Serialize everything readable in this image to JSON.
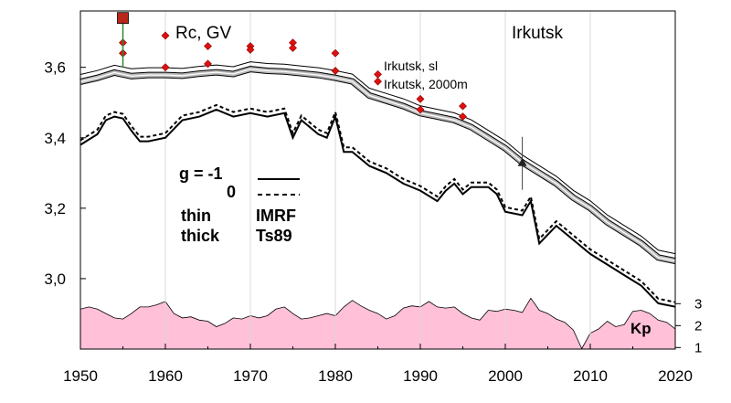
{
  "chart_data": {
    "type": "line",
    "title": "Rc, GV",
    "station_label": "Irkutsk",
    "xlim": [
      1950,
      2020
    ],
    "ylim": [
      2.8,
      3.76
    ],
    "x_ticks": [
      1950,
      1960,
      1970,
      1980,
      1990,
      2000,
      2010,
      2020
    ],
    "y_ticks": [
      {
        "value": 3.0,
        "label": "3,0"
      },
      {
        "value": 3.2,
        "label": "3,2"
      },
      {
        "value": 3.4,
        "label": "3,4"
      },
      {
        "value": 3.6,
        "label": "3,6"
      }
    ],
    "legend": {
      "row1_left": "g  = -1",
      "row2_left": "0",
      "row3_left": "thin",
      "row3_right": "IMRF",
      "row4_left": "thick",
      "row4_right": "Ts89"
    },
    "series": [
      {
        "name": "Irkutsk, 2000m",
        "values": [
          [
            1950,
            3.559
          ],
          [
            1952,
            3.57
          ],
          [
            1954,
            3.585
          ],
          [
            1956,
            3.575
          ],
          [
            1958,
            3.578
          ],
          [
            1960,
            3.578
          ],
          [
            1962,
            3.576
          ],
          [
            1964,
            3.582
          ],
          [
            1966,
            3.586
          ],
          [
            1968,
            3.581
          ],
          [
            1970,
            3.595
          ],
          [
            1972,
            3.59
          ],
          [
            1974,
            3.588
          ],
          [
            1976,
            3.583
          ],
          [
            1978,
            3.578
          ],
          [
            1980,
            3.57
          ],
          [
            1982,
            3.56
          ],
          [
            1984,
            3.52
          ],
          [
            1986,
            3.505
          ],
          [
            1988,
            3.49
          ],
          [
            1990,
            3.47
          ],
          [
            1992,
            3.46
          ],
          [
            1994,
            3.45
          ],
          [
            1996,
            3.43
          ],
          [
            1998,
            3.4
          ],
          [
            2000,
            3.37
          ],
          [
            2002,
            3.33
          ],
          [
            2004,
            3.3
          ],
          [
            2006,
            3.27
          ],
          [
            2008,
            3.23
          ],
          [
            2010,
            3.2
          ],
          [
            2012,
            3.16
          ],
          [
            2014,
            3.13
          ],
          [
            2016,
            3.1
          ],
          [
            2018,
            3.06
          ],
          [
            2020,
            3.05
          ]
        ]
      },
      {
        "name": "Irkutsk, sl",
        "values": [
          [
            1950,
            3.38
          ],
          [
            1952,
            3.41
          ],
          [
            1953,
            3.45
          ],
          [
            1954,
            3.46
          ],
          [
            1955,
            3.455
          ],
          [
            1956,
            3.42
          ],
          [
            1957,
            3.39
          ],
          [
            1958,
            3.39
          ],
          [
            1960,
            3.4
          ],
          [
            1962,
            3.45
          ],
          [
            1964,
            3.46
          ],
          [
            1966,
            3.48
          ],
          [
            1968,
            3.46
          ],
          [
            1970,
            3.47
          ],
          [
            1972,
            3.46
          ],
          [
            1974,
            3.47
          ],
          [
            1975,
            3.4
          ],
          [
            1976,
            3.45
          ],
          [
            1978,
            3.41
          ],
          [
            1979,
            3.4
          ],
          [
            1980,
            3.46
          ],
          [
            1981,
            3.36
          ],
          [
            1982,
            3.36
          ],
          [
            1984,
            3.32
          ],
          [
            1986,
            3.3
          ],
          [
            1988,
            3.27
          ],
          [
            1990,
            3.25
          ],
          [
            1992,
            3.22
          ],
          [
            1993,
            3.25
          ],
          [
            1994,
            3.27
          ],
          [
            1995,
            3.24
          ],
          [
            1996,
            3.26
          ],
          [
            1998,
            3.26
          ],
          [
            1999,
            3.24
          ],
          [
            2000,
            3.19
          ],
          [
            2002,
            3.18
          ],
          [
            2003,
            3.22
          ],
          [
            2004,
            3.1
          ],
          [
            2006,
            3.15
          ],
          [
            2008,
            3.11
          ],
          [
            2010,
            3.07
          ],
          [
            2012,
            3.04
          ],
          [
            2014,
            3.01
          ],
          [
            2016,
            2.98
          ],
          [
            2018,
            2.93
          ],
          [
            2020,
            2.92
          ]
        ]
      }
    ],
    "kp_panel": {
      "label": "Kp",
      "ticks": [
        1,
        2,
        3
      ],
      "values": [
        [
          1950,
          2.75
        ],
        [
          1951,
          2.85
        ],
        [
          1952,
          2.75
        ],
        [
          1953,
          2.55
        ],
        [
          1954,
          2.35
        ],
        [
          1955,
          2.3
        ],
        [
          1956,
          2.55
        ],
        [
          1957,
          2.85
        ],
        [
          1958,
          2.85
        ],
        [
          1959,
          2.95
        ],
        [
          1960,
          3.1
        ],
        [
          1961,
          2.55
        ],
        [
          1962,
          2.35
        ],
        [
          1963,
          2.4
        ],
        [
          1964,
          2.25
        ],
        [
          1965,
          2.2
        ],
        [
          1966,
          1.95
        ],
        [
          1967,
          2.1
        ],
        [
          1968,
          2.35
        ],
        [
          1969,
          2.3
        ],
        [
          1970,
          2.45
        ],
        [
          1971,
          2.35
        ],
        [
          1972,
          2.45
        ],
        [
          1973,
          2.75
        ],
        [
          1974,
          2.85
        ],
        [
          1975,
          2.55
        ],
        [
          1976,
          2.3
        ],
        [
          1977,
          2.35
        ],
        [
          1978,
          2.45
        ],
        [
          1979,
          2.55
        ],
        [
          1980,
          2.45
        ],
        [
          1981,
          2.85
        ],
        [
          1982,
          3.15
        ],
        [
          1983,
          2.9
        ],
        [
          1984,
          2.7
        ],
        [
          1985,
          2.55
        ],
        [
          1986,
          2.3
        ],
        [
          1987,
          2.45
        ],
        [
          1988,
          2.8
        ],
        [
          1989,
          2.9
        ],
        [
          1990,
          2.85
        ],
        [
          1991,
          3.1
        ],
        [
          1992,
          2.85
        ],
        [
          1993,
          2.8
        ],
        [
          1994,
          2.85
        ],
        [
          1995,
          2.55
        ],
        [
          1996,
          2.35
        ],
        [
          1997,
          2.25
        ],
        [
          1998,
          2.7
        ],
        [
          1999,
          2.65
        ],
        [
          2000,
          2.75
        ],
        [
          2001,
          2.7
        ],
        [
          2002,
          2.6
        ],
        [
          2003,
          3.25
        ],
        [
          2004,
          2.7
        ],
        [
          2005,
          2.55
        ],
        [
          2006,
          2.3
        ],
        [
          2007,
          2.15
        ],
        [
          2008,
          1.8
        ],
        [
          2009,
          0.95
        ],
        [
          2010,
          1.65
        ],
        [
          2011,
          1.85
        ],
        [
          2012,
          2.2
        ],
        [
          2013,
          1.95
        ],
        [
          2014,
          2.05
        ],
        [
          2015,
          2.65
        ],
        [
          2016,
          2.7
        ],
        [
          2017,
          2.55
        ],
        [
          2018,
          2.25
        ],
        [
          2019,
          2.15
        ],
        [
          2020,
          1.85
        ]
      ]
    },
    "station_points": [
      {
        "x": 1955,
        "y": 3.67
      },
      {
        "x": 1955,
        "y": 3.64
      },
      {
        "x": 1960,
        "y": 3.69
      },
      {
        "x": 1960,
        "y": 3.6
      },
      {
        "x": 1965,
        "y": 3.66
      },
      {
        "x": 1965,
        "y": 3.61
      },
      {
        "x": 1970,
        "y": 3.66
      },
      {
        "x": 1970,
        "y": 3.65
      },
      {
        "x": 1975,
        "y": 3.67
      },
      {
        "x": 1975,
        "y": 3.655
      },
      {
        "x": 1980,
        "y": 3.64
      },
      {
        "x": 1980,
        "y": 3.59
      },
      {
        "x": 1985,
        "y": 3.58
      },
      {
        "x": 1985,
        "y": 3.56
      },
      {
        "x": 1990,
        "y": 3.51
      },
      {
        "x": 1990,
        "y": 3.48
      },
      {
        "x": 1995,
        "y": 3.49
      },
      {
        "x": 1995,
        "y": 3.46
      }
    ],
    "special_square": {
      "x": 1955,
      "y": 3.74
    },
    "triangle_marker": {
      "x": 2002,
      "y": 3.33
    }
  }
}
